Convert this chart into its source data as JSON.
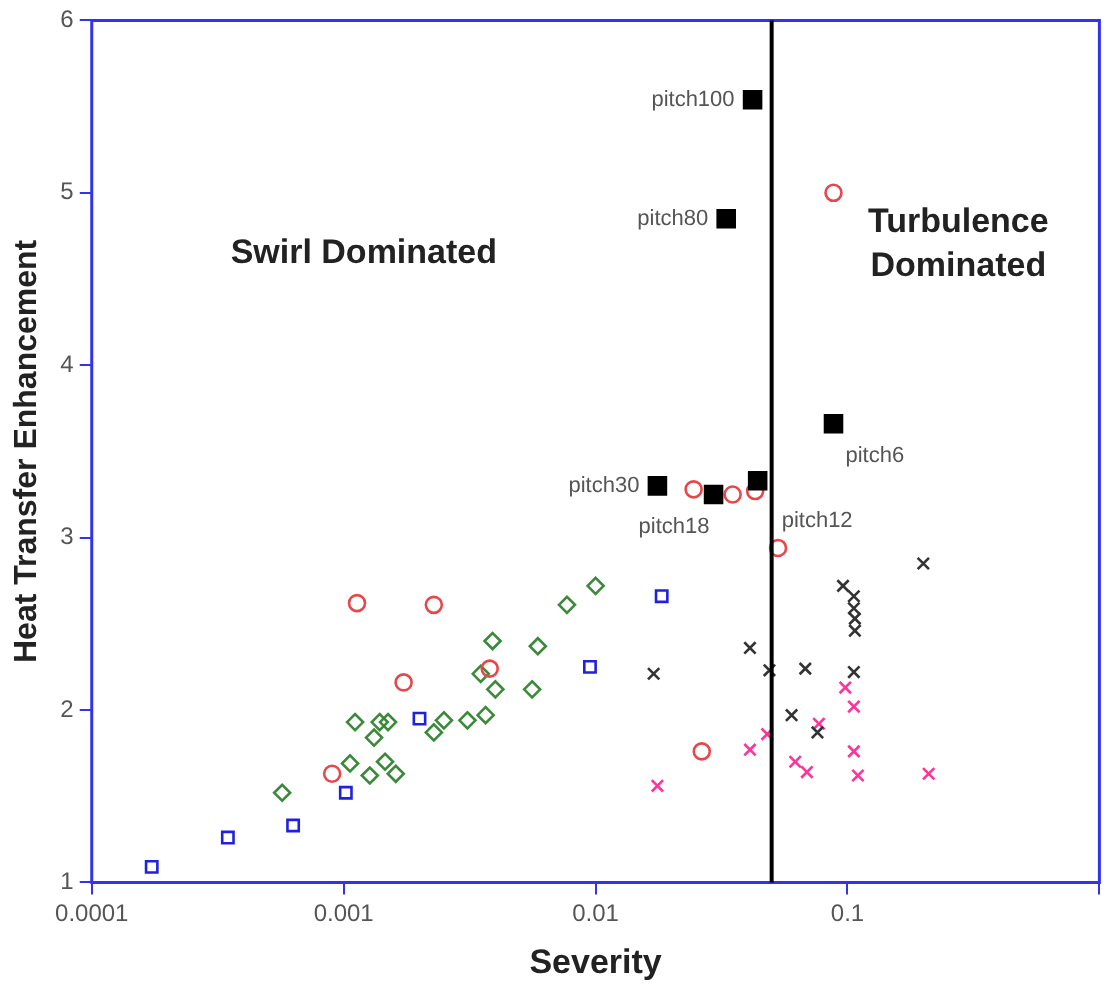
{
  "chart_data": {
    "type": "scatter",
    "xlabel": "Severity",
    "ylabel": "Heat Transfer Enhancement",
    "log": "x",
    "grid": false,
    "legend": false,
    "xlim": [
      0.0001,
      1
    ],
    "xticks": [
      0.0001,
      0.001,
      0.01,
      0.1,
      {
        "value": 1,
        "label": null
      }
    ],
    "ylim": [
      1,
      6
    ],
    "yticks": [
      1,
      2,
      3,
      4,
      5,
      6
    ],
    "ref_lines": [
      {
        "axis": "x",
        "value": 0.05,
        "color": "#000000"
      }
    ],
    "annotations": [
      "Swirl Dominated",
      "Turbulence Dominated"
    ],
    "series": [
      {
        "color": "#000000",
        "marker": "square",
        "x": [
          0.042,
          0.033,
          0.0176,
          0.0294,
          0.044,
          0.088
        ],
        "values": [
          5.54,
          4.85,
          3.3,
          3.25,
          3.33,
          3.66
        ],
        "value_labels": [
          "pitch100",
          "pitch80",
          "pitch30",
          "pitch18",
          "pitch12",
          "pitch6"
        ]
      },
      {
        "color": "#e8474a",
        "marker": "circle",
        "x": [
          0.088,
          0.00113,
          0.00228,
          0.00173,
          0.0038,
          0.0009,
          0.0264,
          0.053,
          0.0245,
          0.035,
          0.043
        ],
        "values": [
          5.0,
          2.62,
          2.61,
          2.16,
          2.24,
          1.63,
          1.76,
          2.94,
          3.28,
          3.25,
          3.27
        ]
      },
      {
        "color": "#3a8a3a",
        "marker": "diamond",
        "x": [
          0.00057,
          0.00106,
          0.00111,
          0.00132,
          0.00127,
          0.00139,
          0.0015,
          0.00146,
          0.00161,
          0.00228,
          0.0025,
          0.0031,
          0.00366,
          0.0035,
          0.004,
          0.0039,
          0.0056,
          0.0059,
          0.0077,
          0.01
        ],
        "values": [
          1.52,
          1.69,
          1.93,
          1.84,
          1.62,
          1.93,
          1.93,
          1.7,
          1.63,
          1.87,
          1.94,
          1.94,
          1.97,
          2.21,
          2.12,
          2.4,
          2.12,
          2.37,
          2.61,
          2.72
        ]
      },
      {
        "color": "#2020e0",
        "marker": "square",
        "x": [
          0.000173,
          0.000347,
          0.00063,
          0.00102,
          0.002,
          0.0095,
          0.0183
        ],
        "values": [
          1.09,
          1.26,
          1.33,
          1.52,
          1.95,
          2.25,
          2.66
        ]
      },
      {
        "color": "#333333",
        "marker": "cross",
        "x": [
          0.017,
          0.041,
          0.049,
          0.068,
          0.06,
          0.076,
          0.096,
          0.106,
          0.106,
          0.107,
          0.107,
          0.106,
          0.2
        ],
        "values": [
          2.21,
          2.36,
          2.23,
          2.24,
          1.97,
          1.87,
          2.72,
          2.66,
          2.59,
          2.53,
          2.46,
          2.22,
          2.85
        ]
      },
      {
        "color": "#ff3399",
        "marker": "cross",
        "x": [
          0.0176,
          0.041,
          0.048,
          0.077,
          0.098,
          0.106,
          0.062,
          0.069,
          0.106,
          0.11,
          0.21
        ],
        "values": [
          1.56,
          1.77,
          1.86,
          1.92,
          2.13,
          2.02,
          1.7,
          1.64,
          1.76,
          1.62,
          1.63
        ]
      }
    ]
  }
}
